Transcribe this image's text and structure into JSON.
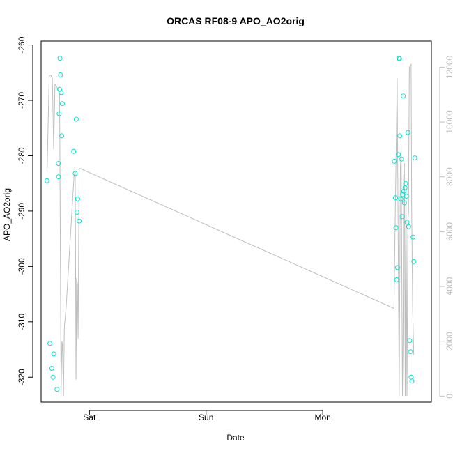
{
  "chart_data": {
    "type": "scatter",
    "title": "ORCAS RF08-9 APO_AO2orig",
    "xlabel": "Date",
    "ylabel": "APO_AO2orig",
    "x_ticks": [
      {
        "label": "Sat",
        "day": 1
      },
      {
        "label": "Sun",
        "day": 2
      },
      {
        "label": "Mon",
        "day": 3
      }
    ],
    "x_range_days": [
      0.586,
      3.931
    ],
    "y_left": {
      "range": [
        -324.5,
        -259.3
      ],
      "ticks": [
        -260,
        -270,
        -280,
        -290,
        -300,
        -310,
        -320
      ],
      "tick_labels": [
        "-260",
        "-270",
        "-280",
        "-290",
        "-300",
        "-310",
        "-320"
      ]
    },
    "y_right": {
      "range": [
        -220,
        12950
      ],
      "ticks": [
        0,
        2000,
        4000,
        6000,
        8000,
        10000,
        12000
      ],
      "tick_labels": [
        "0",
        "2000",
        "4000",
        "6000",
        "8000",
        "10000",
        "12000"
      ]
    },
    "colors": {
      "points": "#00e5cc",
      "line": "#bebebe",
      "frame": "#000000",
      "right_axis": "#bebebe"
    },
    "series": [
      {
        "kind": "points",
        "axis": "left",
        "points": [
          [
            0.636,
            -284.5
          ],
          [
            0.661,
            -313.9
          ],
          [
            0.678,
            -318.4
          ],
          [
            0.688,
            -320.0
          ],
          [
            0.694,
            -315.8
          ],
          [
            0.722,
            -322.2
          ],
          [
            0.734,
            -281.4
          ],
          [
            0.736,
            -283.8
          ],
          [
            0.741,
            -272.4
          ],
          [
            0.744,
            -268.0
          ],
          [
            0.748,
            -262.4
          ],
          [
            0.752,
            -265.4
          ],
          [
            0.758,
            -268.6
          ],
          [
            0.763,
            -276.4
          ],
          [
            0.768,
            -270.6
          ],
          [
            0.865,
            -279.2
          ],
          [
            0.878,
            -283.2
          ],
          [
            0.887,
            -273.4
          ],
          [
            0.893,
            -290.2
          ],
          [
            0.899,
            -287.8
          ],
          [
            0.912,
            -291.8
          ],
          [
            3.614,
            -281.0
          ],
          [
            3.623,
            -287.6
          ],
          [
            3.627,
            -293.0
          ],
          [
            3.633,
            -302.4
          ],
          [
            3.64,
            -300.2
          ],
          [
            3.648,
            -279.8
          ],
          [
            3.652,
            -262.4
          ],
          [
            3.658,
            -262.5
          ],
          [
            3.661,
            -276.4
          ],
          [
            3.669,
            -287.8
          ],
          [
            3.675,
            -280.6
          ],
          [
            3.68,
            -291.0
          ],
          [
            3.686,
            -287.0
          ],
          [
            3.69,
            -269.2
          ],
          [
            3.695,
            -286.4
          ],
          [
            3.7,
            -288.5
          ],
          [
            3.705,
            -285.8
          ],
          [
            3.71,
            -285.0
          ],
          [
            3.716,
            -287.3
          ],
          [
            3.722,
            -292.0
          ],
          [
            3.73,
            -275.8
          ],
          [
            3.736,
            -292.8
          ],
          [
            3.745,
            -313.4
          ],
          [
            3.752,
            -315.4
          ],
          [
            3.758,
            -320.0
          ],
          [
            3.764,
            -320.7
          ],
          [
            3.774,
            -294.7
          ],
          [
            3.781,
            -299.1
          ],
          [
            3.789,
            -280.4
          ]
        ]
      },
      {
        "kind": "line",
        "axis": "right",
        "points": [
          [
            0.638,
            8300
          ],
          [
            0.655,
            11700
          ],
          [
            0.67,
            11700
          ],
          [
            0.682,
            11600
          ],
          [
            0.694,
            9000
          ],
          [
            0.705,
            11400
          ],
          [
            0.728,
            11200
          ],
          [
            0.744,
            11000
          ],
          [
            0.752,
            4500
          ],
          [
            0.757,
            0
          ],
          [
            0.764,
            2000
          ],
          [
            0.768,
            1900
          ],
          [
            0.778,
            0
          ],
          [
            0.785,
            2500
          ],
          [
            0.8,
            3200
          ],
          [
            0.868,
            8000
          ],
          [
            0.878,
            8200
          ],
          [
            0.885,
            600
          ],
          [
            0.89,
            4300
          ],
          [
            0.897,
            4100
          ],
          [
            0.903,
            2100
          ],
          [
            0.912,
            8300
          ],
          [
            0.923,
            8300
          ],
          [
            3.61,
            3200
          ],
          [
            3.638,
            11600
          ],
          [
            3.655,
            0
          ],
          [
            3.665,
            8300
          ],
          [
            3.672,
            9200
          ],
          [
            3.683,
            0
          ],
          [
            3.688,
            1800
          ],
          [
            3.693,
            8000
          ],
          [
            3.7,
            8500
          ],
          [
            3.707,
            0
          ],
          [
            3.713,
            8000
          ],
          [
            3.722,
            0
          ],
          [
            3.73,
            6300
          ],
          [
            3.735,
            6700
          ],
          [
            3.742,
            12000
          ],
          [
            3.757,
            12100
          ],
          [
            3.762,
            6900
          ],
          [
            3.771,
            3100
          ],
          [
            3.78,
            1500
          ]
        ]
      }
    ]
  }
}
